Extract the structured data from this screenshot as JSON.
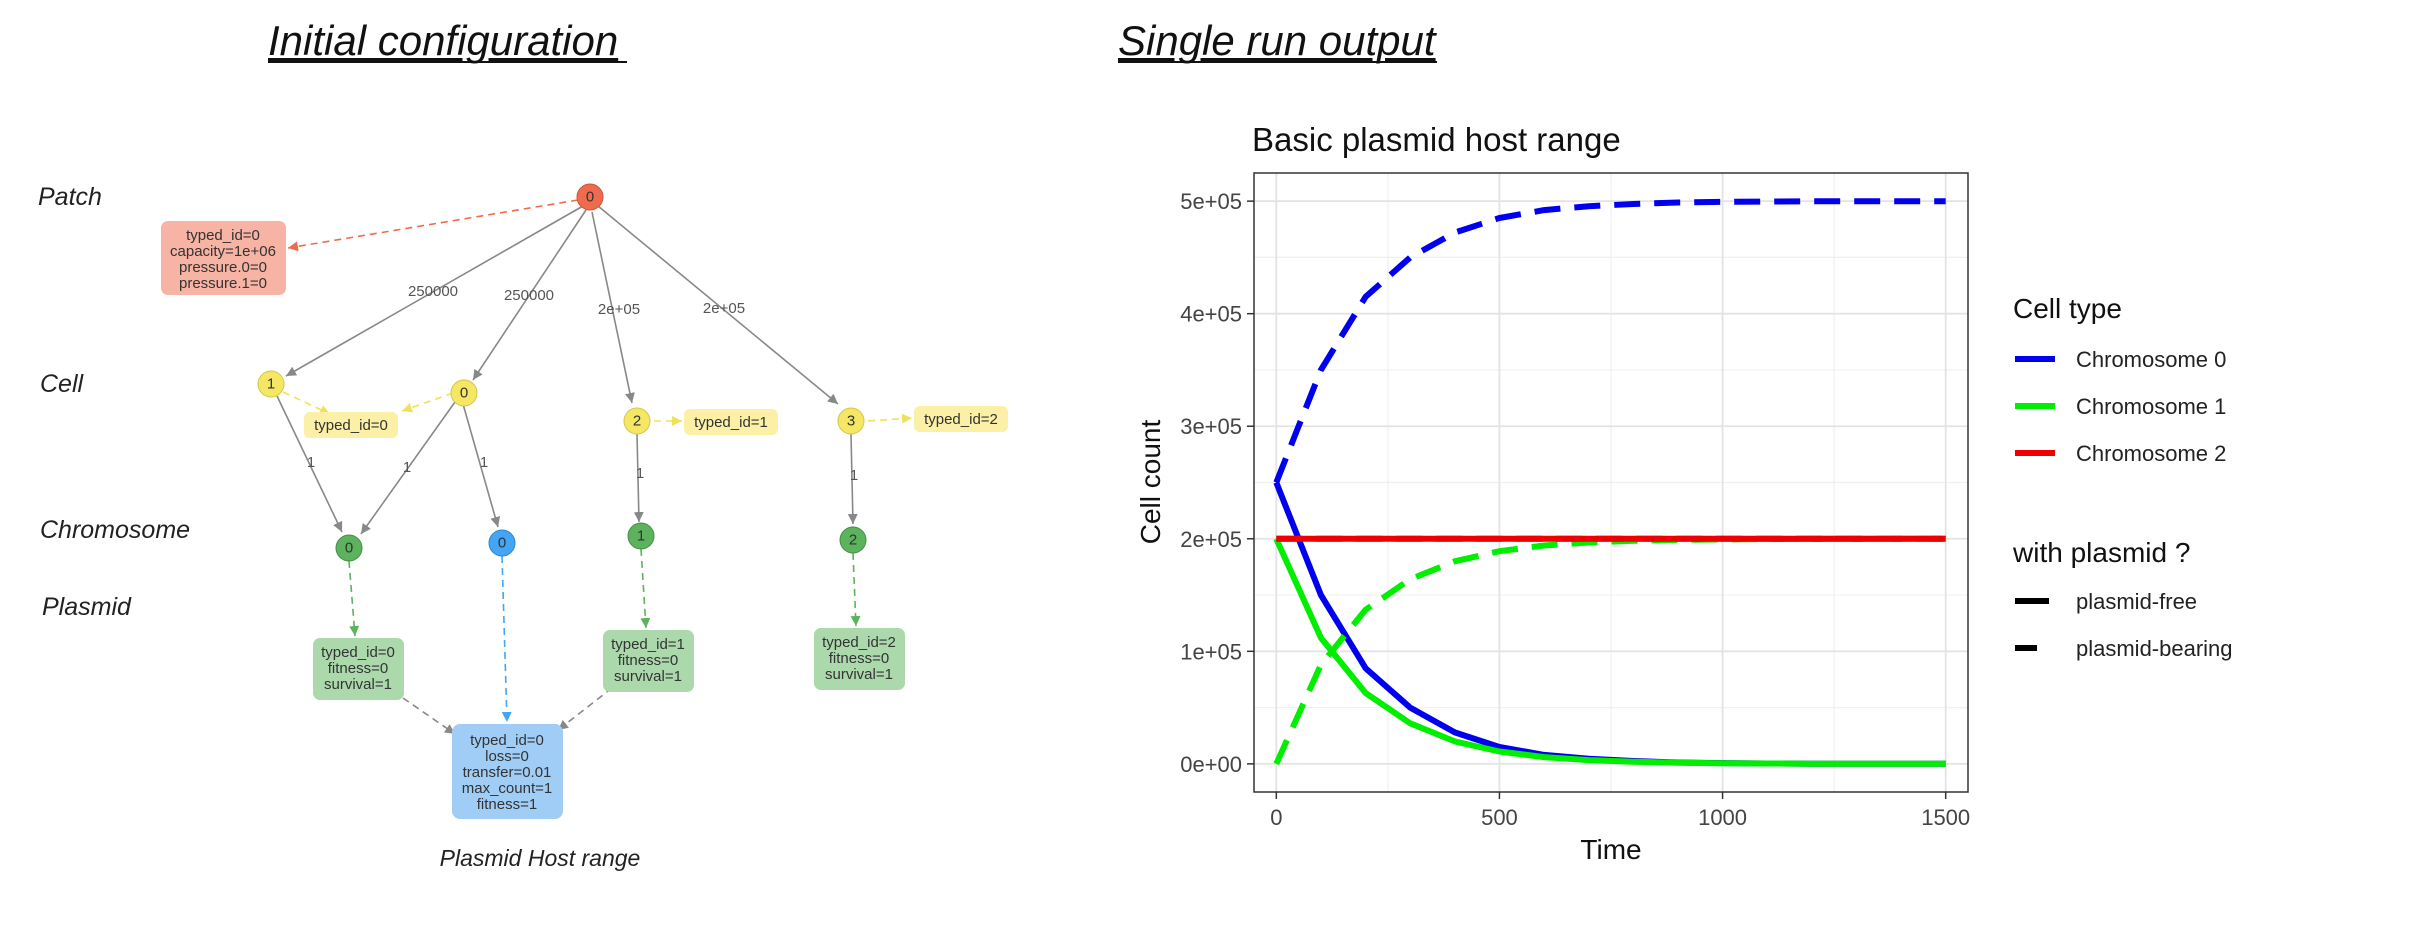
{
  "left_heading": "Initial configuration",
  "right_heading": "Single run output",
  "diagram": {
    "row_labels": [
      "Patch",
      "Cell",
      "Chromosome",
      "Plasmid"
    ],
    "caption": "Plasmid Host range",
    "colors": {
      "patch": "#ee6c4d",
      "patch_box": "#f7b3a3",
      "cell": "#f5e663",
      "cell_box": "#fbf0a6",
      "chromosome": "#5cb25d",
      "chromosome_box": "#abd9ac",
      "plasmid": "#42a5f5",
      "plasmid_box": "#9fcdf6"
    },
    "patch": {
      "label": "0",
      "info": [
        "typed_id=0",
        "capacity=1e+06",
        "pressure.0=0",
        "pressure.1=0"
      ]
    },
    "cells": [
      {
        "label": "1",
        "edge_label": "250000"
      },
      {
        "label": "0",
        "edge_label": "250000"
      },
      {
        "label": "2",
        "edge_label": "2e+05",
        "info": "typed_id=1"
      },
      {
        "label": "3",
        "edge_label": "2e+05",
        "info": "typed_id=2"
      }
    ],
    "shared_cell_info": "typed_id=0",
    "cell_chrom_edge_label": "1",
    "chromosomes": [
      {
        "label": "0",
        "info": [
          "typed_id=0",
          "fitness=0",
          "survival=1"
        ]
      },
      {
        "label": "1",
        "info": [
          "typed_id=1",
          "fitness=0",
          "survival=1"
        ]
      },
      {
        "label": "2",
        "info": [
          "typed_id=2",
          "fitness=0",
          "survival=1"
        ]
      }
    ],
    "plasmid": {
      "label": "0",
      "info": [
        "typed_id=0",
        "loss=0",
        "transfer=0.01",
        "max_count=1",
        "fitness=1"
      ]
    }
  },
  "chart_data": {
    "type": "line",
    "title": "Basic plasmid host range",
    "xlabel": "Time",
    "ylabel": "Cell count",
    "xlim": [
      -50,
      1550
    ],
    "ylim": [
      -25000,
      525000
    ],
    "x_ticks": [
      0,
      500,
      1000,
      1500
    ],
    "y_ticks": [
      0,
      100000,
      200000,
      300000,
      400000,
      500000
    ],
    "y_tick_labels": [
      "0e+00",
      "1e+05",
      "2e+05",
      "3e+05",
      "4e+05",
      "5e+05"
    ],
    "grid": true,
    "legend_position": "right",
    "legend": {
      "color_title": "Cell type",
      "color_entries": [
        {
          "name": "Chromosome 0",
          "color": "#0000ee"
        },
        {
          "name": "Chromosome 1",
          "color": "#00ee00"
        },
        {
          "name": "Chromosome 2",
          "color": "#ee0000"
        }
      ],
      "linetype_title": "with plasmid ?",
      "linetype_entries": [
        {
          "name": "plasmid-free",
          "dash": "solid"
        },
        {
          "name": "plasmid-bearing",
          "dash": "dashed"
        }
      ]
    },
    "x": [
      0,
      100,
      200,
      300,
      400,
      500,
      600,
      700,
      800,
      900,
      1000,
      1100,
      1200,
      1300,
      1400,
      1500
    ],
    "series": [
      {
        "chromosome": "Chromosome 0",
        "plasmid": "plasmid-free",
        "color": "#0000ee",
        "dash": "solid",
        "values": [
          250000,
          150000,
          85000,
          50000,
          28000,
          15000,
          8000,
          4500,
          2500,
          1200,
          700,
          300,
          150,
          80,
          40,
          20
        ]
      },
      {
        "chromosome": "Chromosome 0",
        "plasmid": "plasmid-bearing",
        "color": "#0000ee",
        "dash": "dashed",
        "values": [
          250000,
          350000,
          415000,
          450000,
          472000,
          485000,
          492000,
          495500,
          497500,
          498800,
          499300,
          499700,
          499850,
          499920,
          499960,
          499980
        ]
      },
      {
        "chromosome": "Chromosome 1",
        "plasmid": "plasmid-free",
        "color": "#00ee00",
        "dash": "solid",
        "values": [
          200000,
          112000,
          63000,
          36000,
          20000,
          11000,
          6000,
          3300,
          1800,
          1000,
          550,
          300,
          150,
          80,
          40,
          20
        ]
      },
      {
        "chromosome": "Chromosome 1",
        "plasmid": "plasmid-bearing",
        "color": "#00ee00",
        "dash": "dashed",
        "values": [
          0,
          88000,
          137000,
          164000,
          180000,
          189000,
          194000,
          196700,
          198200,
          199000,
          199450,
          199700,
          199850,
          199920,
          199960,
          199980
        ]
      },
      {
        "chromosome": "Chromosome 2",
        "plasmid": "plasmid-free",
        "color": "#ee0000",
        "dash": "solid",
        "values": [
          200000,
          200000,
          200000,
          200000,
          200000,
          200000,
          200000,
          200000,
          200000,
          200000,
          200000,
          200000,
          200000,
          200000,
          200000,
          200000
        ]
      },
      {
        "chromosome": "Chromosome 2",
        "plasmid": "plasmid-bearing",
        "color": "#ee0000",
        "dash": "dashed",
        "values": [
          200000,
          200000,
          200000,
          200000,
          200000,
          200000,
          200000,
          200000,
          200000,
          200000,
          200000,
          200000,
          200000,
          200000,
          200000,
          200000
        ]
      }
    ]
  }
}
